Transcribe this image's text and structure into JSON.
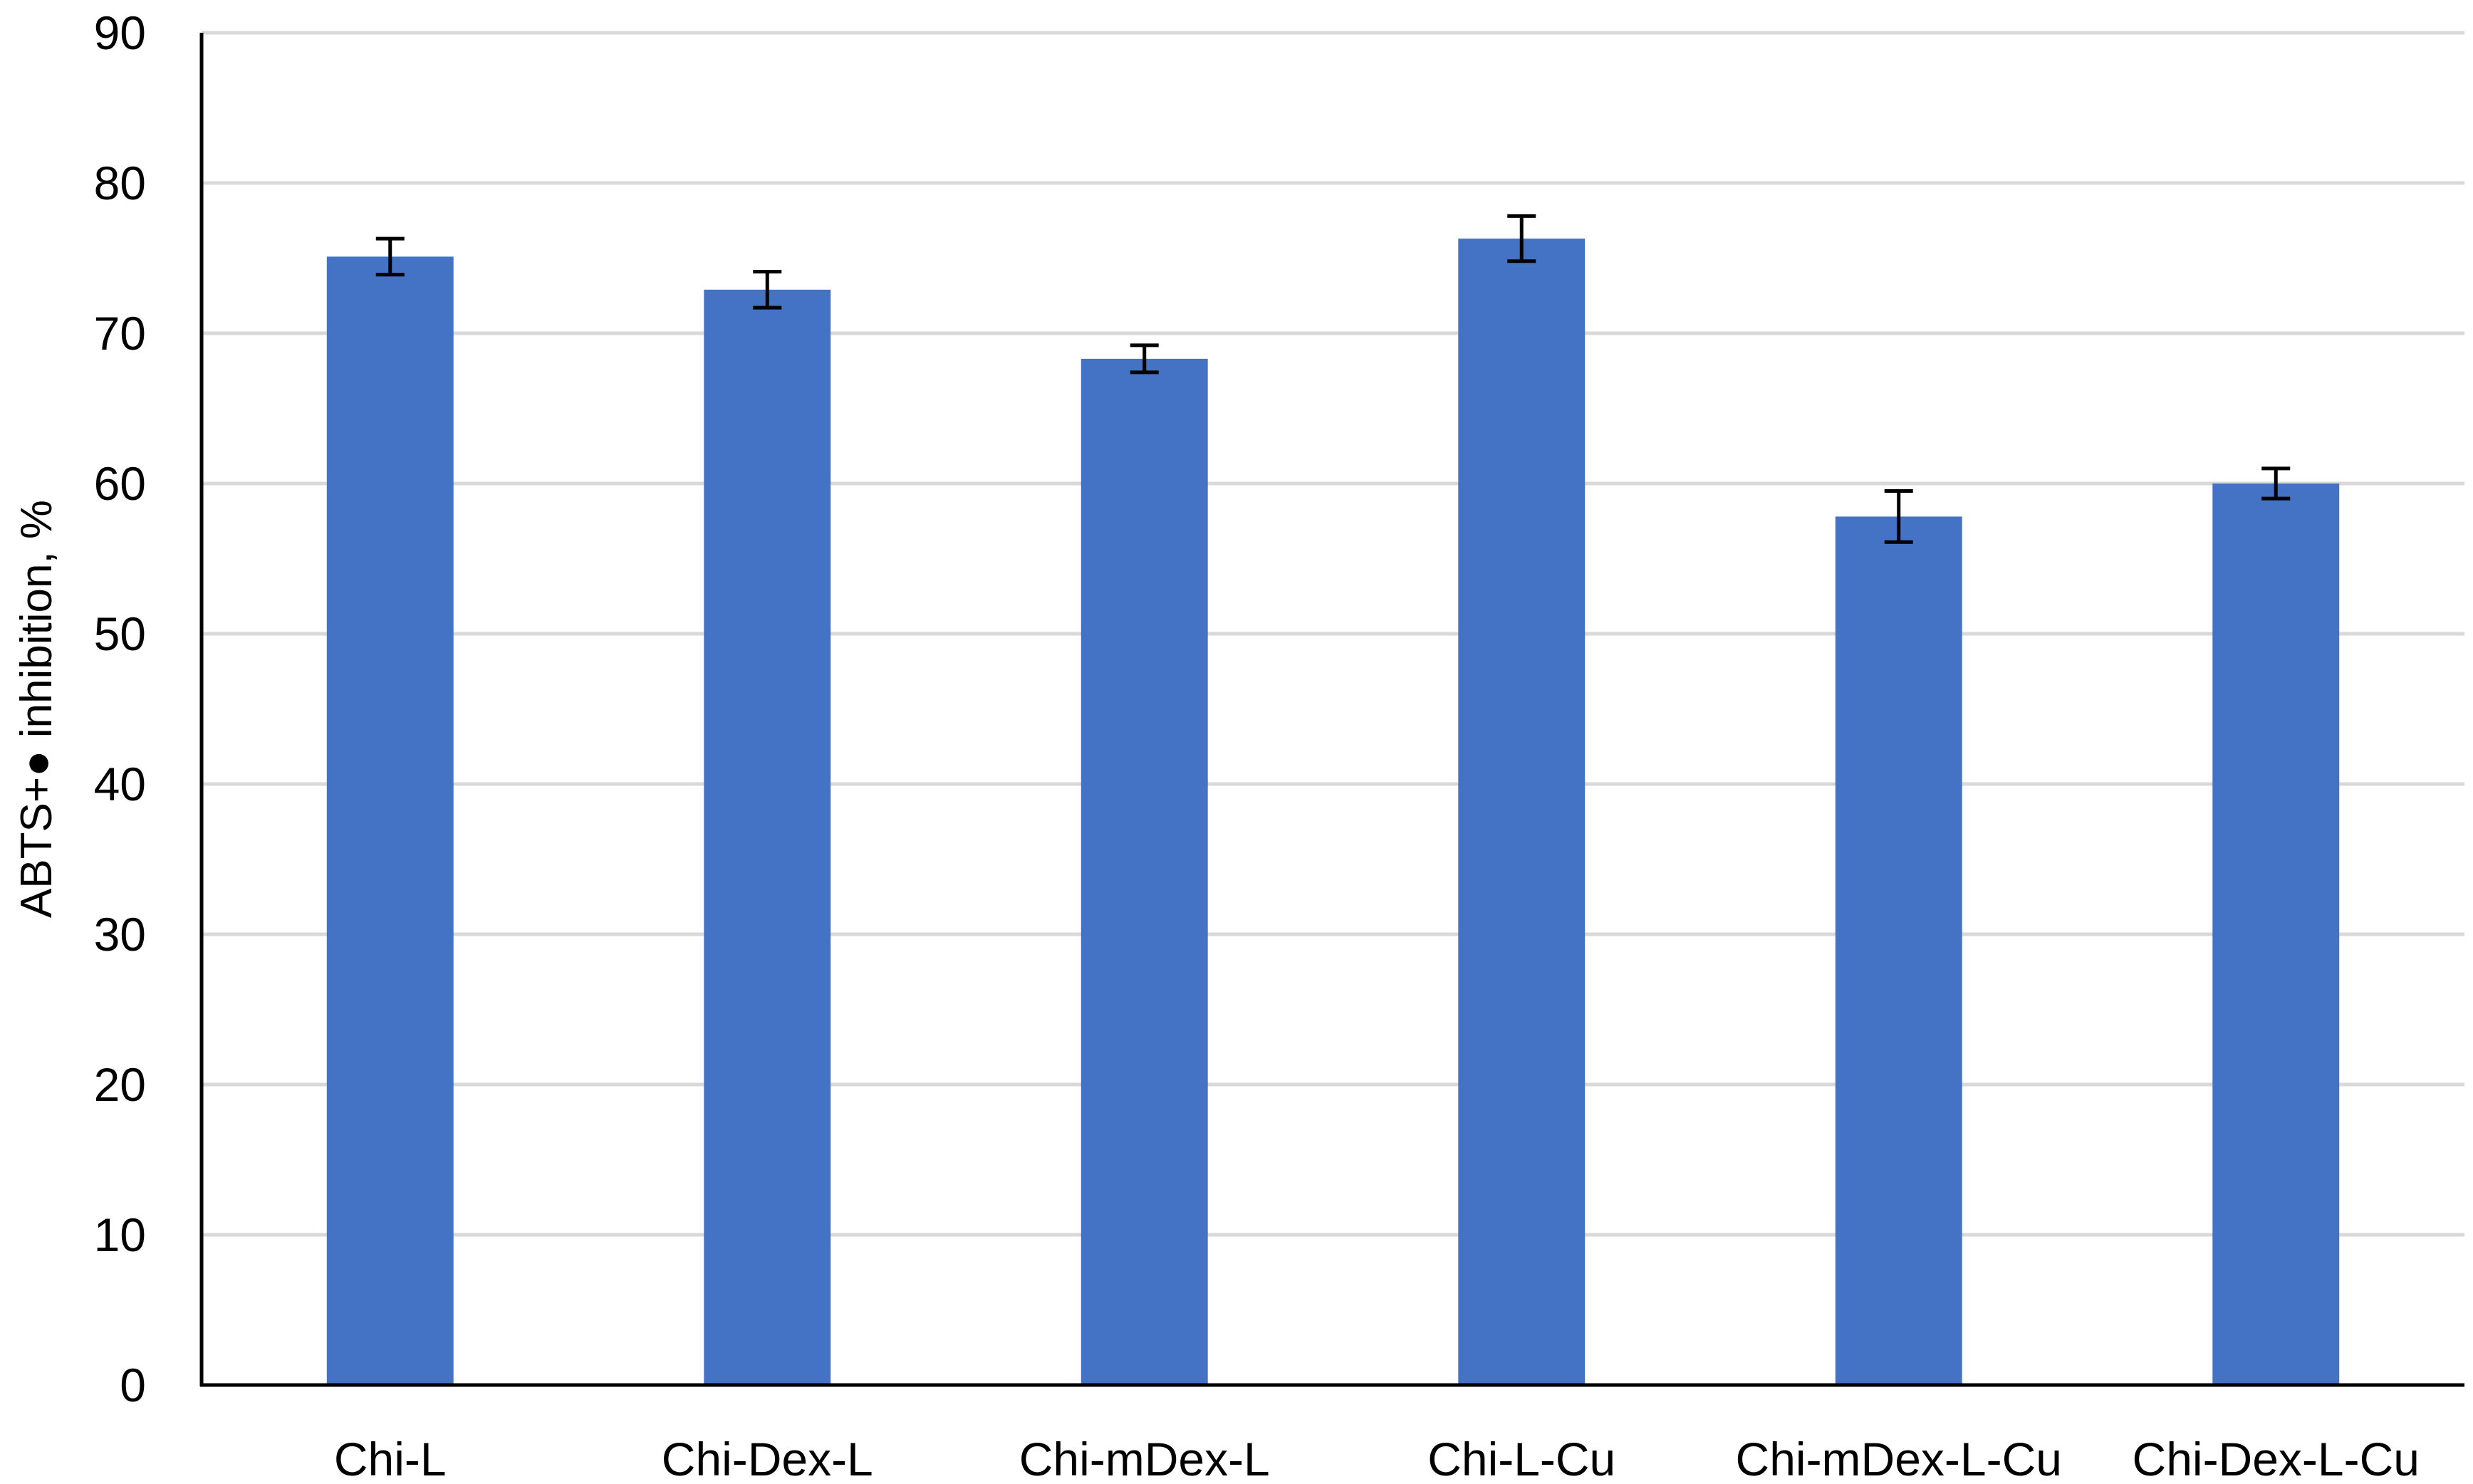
{
  "chart_data": {
    "type": "bar",
    "title": "",
    "xlabel": "",
    "ylabel": "ABTS+● inhibition, %",
    "categories": [
      "Chi-L",
      "Chi-Dex-L",
      "Chi-mDex-L",
      "Chi-L-Cu",
      "Chi-mDex-L-Cu",
      "Chi-Dex-L-Cu"
    ],
    "values": [
      75.1,
      72.9,
      68.3,
      76.3,
      57.8,
      60.0
    ],
    "errors": [
      1.2,
      1.2,
      0.9,
      1.5,
      1.7,
      1.0
    ],
    "ylim": [
      0,
      90
    ],
    "yticks": [
      0,
      10,
      20,
      30,
      40,
      50,
      60,
      70,
      80,
      90
    ],
    "grid": true,
    "legend": "none",
    "colors": {
      "bar": "#4472C4",
      "grid": "#D9D9D9",
      "axis": "#000000",
      "error_bar": "#000000"
    }
  }
}
